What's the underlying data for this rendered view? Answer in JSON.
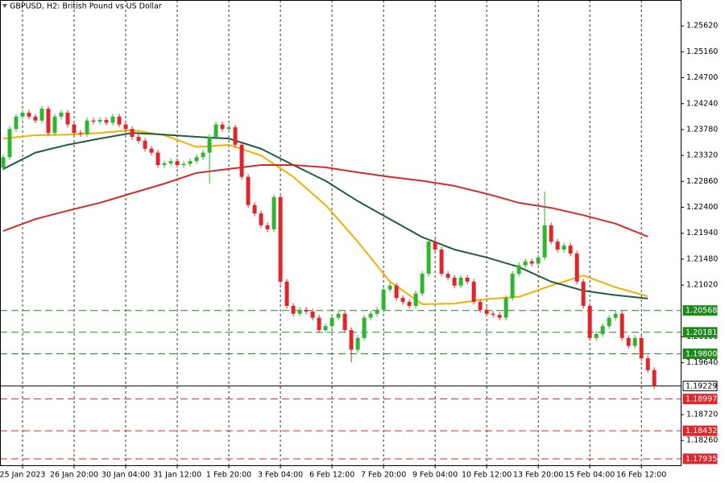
{
  "chart_data": {
    "type": "candlestick",
    "title": "GBPUSD, H2:  British Pound vs US Dollar",
    "xlim": [
      -0.5,
      105.1
    ],
    "ylim": [
      1.1782,
      1.2608
    ],
    "grid": true,
    "up_color": "#2fb52f",
    "down_color": "#e0262b",
    "xticks": [
      {
        "value": 3,
        "label": "25 Jan 2023"
      },
      {
        "value": 11,
        "label": "26 Jan 20:00"
      },
      {
        "value": 19,
        "label": "30 Jan 04:00"
      },
      {
        "value": 27,
        "label": "31 Jan 12:00"
      },
      {
        "value": 35,
        "label": "1 Feb 20:00"
      },
      {
        "value": 43,
        "label": "3 Feb 04:00"
      },
      {
        "value": 51,
        "label": "6 Feb 12:00"
      },
      {
        "value": 59,
        "label": "7 Feb 20:00"
      },
      {
        "value": 67,
        "label": "9 Feb 04:00"
      },
      {
        "value": 75,
        "label": "10 Feb 12:00"
      },
      {
        "value": 83,
        "label": "13 Feb 20:00"
      },
      {
        "value": 91,
        "label": "15 Feb 04:00"
      },
      {
        "value": 99,
        "label": "16 Feb 12:00"
      }
    ],
    "yticks": [
      {
        "value": 1.2562,
        "label": "1.25620"
      },
      {
        "value": 1.2516,
        "label": "1.25160"
      },
      {
        "value": 1.247,
        "label": "1.24700"
      },
      {
        "value": 1.2424,
        "label": "1.24240"
      },
      {
        "value": 1.2378,
        "label": "1.23780"
      },
      {
        "value": 1.2332,
        "label": "1.23320"
      },
      {
        "value": 1.2286,
        "label": "1.22860"
      },
      {
        "value": 1.224,
        "label": "1.22400"
      },
      {
        "value": 1.2194,
        "label": "1.21940"
      },
      {
        "value": 1.2148,
        "label": "1.21480"
      },
      {
        "value": 1.2102,
        "label": "1.21020"
      },
      {
        "value": 1.201,
        "label": "1.20100"
      },
      {
        "value": 1.1964,
        "label": "1.19640"
      },
      {
        "value": 1.1872,
        "label": "1.18720"
      },
      {
        "value": 1.1826,
        "label": "1.18260"
      }
    ],
    "open": [
      1.231,
      1.2329,
      1.2379,
      1.2401,
      1.2408,
      1.2401,
      1.2394,
      1.2415,
      1.2372,
      1.2401,
      1.2408,
      1.2387,
      1.2372,
      1.237,
      1.2394,
      1.2392,
      1.2395,
      1.239,
      1.2401,
      1.2387,
      1.2379,
      1.2365,
      1.2358,
      1.2344,
      1.2337,
      1.2315,
      1.2318,
      1.2322,
      1.2315,
      1.2317,
      1.2322,
      1.2329,
      1.2337,
      1.2365,
      1.2387,
      1.2379,
      1.2382,
      1.2351,
      1.2294,
      1.2244,
      1.2229,
      1.2208,
      1.2201,
      1.2258,
      1.2108,
      1.2065,
      1.2051,
      1.2058,
      1.2055,
      1.2044,
      1.2022,
      1.2029,
      1.2044,
      1.2051,
      1.2022,
      1.1987,
      1.2008,
      1.2044,
      1.2051,
      1.2058,
      1.2094,
      1.2101,
      1.2079,
      1.2072,
      1.2065,
      1.2087,
      1.2122,
      1.2179,
      1.2165,
      1.2122,
      1.2115,
      1.2101,
      1.2115,
      1.2108,
      1.2072,
      1.2058,
      1.2051,
      1.2049,
      1.2044,
      1.2079,
      1.2122,
      1.2137,
      1.2144,
      1.214,
      1.2151,
      1.2208,
      1.2179,
      1.2165,
      1.2172,
      1.2158,
      1.2108,
      1.2065,
      1.2008,
      1.2015,
      1.2029,
      1.2044,
      1.2051,
      1.2008,
      1.1994,
      1.2008,
      1.1972,
      1.1951
    ],
    "high": [
      1.2334,
      1.2384,
      1.2406,
      1.2413,
      1.2413,
      1.2406,
      1.242,
      1.242,
      1.2406,
      1.2413,
      1.2413,
      1.2392,
      1.2377,
      1.2399,
      1.2399,
      1.24,
      1.24,
      1.2406,
      1.2406,
      1.2392,
      1.2384,
      1.237,
      1.2363,
      1.2349,
      1.2342,
      1.2323,
      1.2327,
      1.2327,
      1.2322,
      1.2327,
      1.2334,
      1.2342,
      1.237,
      1.2392,
      1.2392,
      1.2387,
      1.2387,
      1.2356,
      1.2299,
      1.2249,
      1.2234,
      1.2213,
      1.2263,
      1.2263,
      1.2113,
      1.207,
      1.2063,
      1.2063,
      1.206,
      1.2049,
      1.2034,
      1.2049,
      1.2056,
      1.2056,
      1.2027,
      1.2013,
      1.2049,
      1.2056,
      1.2063,
      1.2099,
      1.2106,
      1.2106,
      1.2084,
      1.2077,
      1.2092,
      1.2127,
      1.2184,
      1.2184,
      1.217,
      1.2127,
      1.212,
      1.212,
      1.212,
      1.2113,
      1.2077,
      1.2063,
      1.2056,
      1.2054,
      1.2084,
      1.2127,
      1.2142,
      1.2149,
      1.2149,
      1.2156,
      1.2268,
      1.2213,
      1.2184,
      1.2177,
      1.2177,
      1.2163,
      1.2113,
      1.207,
      1.202,
      1.2034,
      1.2049,
      1.2056,
      1.2056,
      1.2013,
      1.2013,
      1.2013,
      1.1977,
      1.1956
    ],
    "low": [
      1.2305,
      1.2324,
      1.2374,
      1.2396,
      1.2396,
      1.2389,
      1.2389,
      1.2367,
      1.2367,
      1.2396,
      1.2382,
      1.2367,
      1.2365,
      1.2365,
      1.2387,
      1.2387,
      1.2385,
      1.2385,
      1.2382,
      1.2374,
      1.236,
      1.2353,
      1.2339,
      1.2332,
      1.231,
      1.231,
      1.2313,
      1.231,
      1.231,
      1.2312,
      1.2317,
      1.2324,
      1.2282,
      1.236,
      1.2374,
      1.2374,
      1.2346,
      1.2289,
      1.2239,
      1.2224,
      1.2203,
      1.2196,
      1.2196,
      1.2103,
      1.206,
      1.2046,
      1.2046,
      1.205,
      1.2039,
      1.2017,
      1.2017,
      1.2024,
      1.2039,
      1.2017,
      1.1965,
      1.1982,
      1.2003,
      1.2039,
      1.2046,
      1.2053,
      1.2089,
      1.2074,
      1.2067,
      1.206,
      1.206,
      1.2082,
      1.2117,
      1.216,
      1.2117,
      1.211,
      1.2096,
      1.2096,
      1.2103,
      1.2067,
      1.2053,
      1.2046,
      1.2044,
      1.2039,
      1.2039,
      1.2074,
      1.2117,
      1.2132,
      1.2135,
      1.2135,
      1.2146,
      1.2174,
      1.216,
      1.216,
      1.2153,
      1.2103,
      1.206,
      1.2003,
      1.2003,
      1.201,
      1.2024,
      1.2039,
      1.2003,
      1.1989,
      1.1989,
      1.1967,
      1.1946,
      1.1918
    ],
    "close": [
      1.2329,
      1.2379,
      1.2401,
      1.2408,
      1.2401,
      1.2394,
      1.2415,
      1.2372,
      1.2401,
      1.2408,
      1.2387,
      1.2372,
      1.237,
      1.2394,
      1.2392,
      1.2395,
      1.239,
      1.2401,
      1.2387,
      1.2379,
      1.2365,
      1.2358,
      1.2344,
      1.2337,
      1.2315,
      1.2318,
      1.2322,
      1.2315,
      1.2317,
      1.2322,
      1.2329,
      1.2337,
      1.2365,
      1.2387,
      1.2379,
      1.2382,
      1.2351,
      1.2294,
      1.2244,
      1.2229,
      1.2208,
      1.2201,
      1.2258,
      1.2108,
      1.2065,
      1.2051,
      1.2058,
      1.2055,
      1.2044,
      1.2022,
      1.2029,
      1.2044,
      1.2051,
      1.2022,
      1.1987,
      1.2008,
      1.2044,
      1.2051,
      1.2058,
      1.2094,
      1.2101,
      1.2079,
      1.2072,
      1.2065,
      1.2087,
      1.2122,
      1.2179,
      1.2165,
      1.2122,
      1.2115,
      1.2101,
      1.2115,
      1.2108,
      1.2072,
      1.2058,
      1.2051,
      1.2049,
      1.2044,
      1.2079,
      1.2122,
      1.2137,
      1.2144,
      1.214,
      1.2151,
      1.2208,
      1.2179,
      1.2165,
      1.2172,
      1.2158,
      1.2108,
      1.2065,
      1.2008,
      1.2015,
      1.2029,
      1.2044,
      1.2051,
      1.2008,
      1.1994,
      1.2008,
      1.1972,
      1.1951,
      1.1923
    ],
    "series": [
      {
        "color": "#f2b000",
        "x": [
          0,
          5,
          10,
          15,
          20,
          25,
          30,
          35,
          40,
          45,
          50,
          55,
          60,
          65,
          70,
          75,
          80,
          85,
          90,
          95,
          100
        ],
        "values": [
          1.2362,
          1.2368,
          1.2369,
          1.2372,
          1.2377,
          1.2368,
          1.2347,
          1.2351,
          1.2332,
          1.2294,
          1.2244,
          1.2179,
          1.2108,
          1.2068,
          1.2069,
          1.2077,
          1.2081,
          1.2101,
          1.2119,
          1.2098,
          1.2082
        ]
      },
      {
        "color": "#1f5c40",
        "x": [
          0,
          5,
          10,
          15,
          20,
          25,
          30,
          35,
          40,
          45,
          50,
          55,
          60,
          65,
          70,
          75,
          80,
          85,
          90,
          95,
          100
        ],
        "values": [
          1.2308,
          1.2337,
          1.2351,
          1.2362,
          1.2372,
          1.2369,
          1.2365,
          1.2362,
          1.2344,
          1.2315,
          1.2287,
          1.2251,
          1.2219,
          1.2187,
          1.2165,
          1.2151,
          1.2134,
          1.2108,
          1.2092,
          1.2084,
          1.2078
        ]
      },
      {
        "color": "#d42a2a",
        "x": [
          0,
          5,
          10,
          15,
          20,
          25,
          30,
          35,
          40,
          45,
          50,
          55,
          60,
          65,
          70,
          75,
          80,
          85,
          90,
          95,
          100
        ],
        "values": [
          1.2198,
          1.2219,
          1.2234,
          1.2248,
          1.2265,
          1.2282,
          1.2301,
          1.2308,
          1.2315,
          1.2315,
          1.2311,
          1.2302,
          1.2294,
          1.2287,
          1.2278,
          1.2264,
          1.2248,
          1.2239,
          1.2226,
          1.2211,
          1.2188
        ]
      }
    ],
    "levels": [
      {
        "value": 1.20568,
        "color": "#1e8a1e",
        "style": "dashed"
      },
      {
        "value": 1.20181,
        "color": "#1e8a1e",
        "style": "dashed"
      },
      {
        "value": 1.198,
        "label": "1.19800",
        "color": "#1e8a1e",
        "style": "dashed"
      },
      {
        "value": 1.19229,
        "color": "#000000",
        "style": "solid"
      },
      {
        "value": 1.18997,
        "color": "#e0262b",
        "style": "dashed"
      },
      {
        "value": 1.18432,
        "color": "#e0262b",
        "style": "dashed"
      },
      {
        "value": 1.17935,
        "color": "#e0262b",
        "style": "dashed"
      }
    ]
  }
}
